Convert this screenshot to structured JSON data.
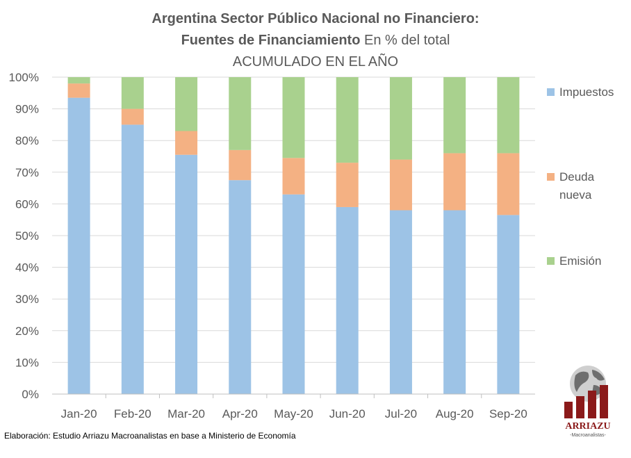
{
  "title": {
    "line1": "Argentina Sector Público Nacional no Financiero:",
    "line2_bold": "Fuentes de Financiamiento",
    "line2_rest": " En % del total",
    "line3": "ACUMULADO EN EL AÑO"
  },
  "footer": "Elaboración: Estudio Arriazu Macroanalistas en base a Ministerio de Economía",
  "logo": {
    "name": "ARRIAZU",
    "sub": "-Macroanalistas-"
  },
  "colors": {
    "impuestos": "#9DC3E6",
    "deuda": "#F4B183",
    "emision": "#A9D18E",
    "grid": "#D9D9D9",
    "logo_red": "#8B1A1A"
  },
  "chart_data": {
    "type": "bar",
    "stacked": true,
    "categories": [
      "Jan-20",
      "Feb-20",
      "Mar-20",
      "Apr-20",
      "May-20",
      "Jun-20",
      "Jul-20",
      "Aug-20",
      "Sep-20"
    ],
    "series": [
      {
        "name": "Impuestos",
        "values": [
          93.5,
          85,
          75.5,
          67.5,
          63,
          59,
          58,
          58,
          56.5
        ]
      },
      {
        "name": "Deuda nueva",
        "values": [
          4.5,
          5,
          7.5,
          9.5,
          11.5,
          14,
          16,
          18,
          19.5
        ]
      },
      {
        "name": "Emisión",
        "values": [
          2,
          10,
          17,
          23,
          25.5,
          27,
          26,
          24,
          24
        ]
      }
    ],
    "yticks": [
      "0%",
      "10%",
      "20%",
      "30%",
      "40%",
      "50%",
      "60%",
      "70%",
      "80%",
      "90%",
      "100%"
    ],
    "ylim": [
      0,
      100
    ],
    "grid": true,
    "legend_position": "right",
    "legend_labels": [
      {
        "key": "impuestos",
        "lines": [
          "Impuestos"
        ]
      },
      {
        "key": "deuda",
        "lines": [
          "Deuda",
          "nueva"
        ]
      },
      {
        "key": "emision",
        "lines": [
          "Emisión"
        ]
      }
    ]
  }
}
